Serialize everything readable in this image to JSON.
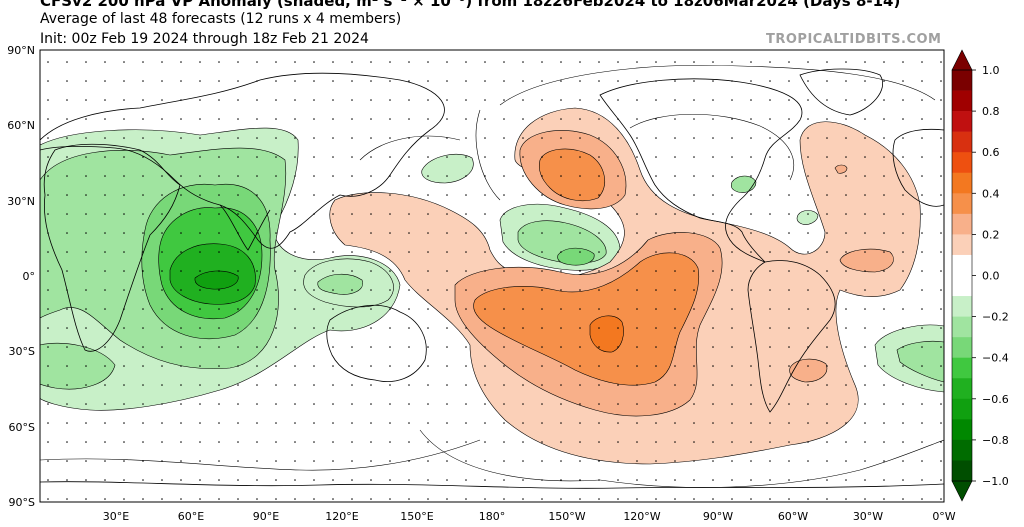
{
  "header": {
    "title": "CFSv2 200 hPa VP Anomaly (shaded, m² s⁻¹ × 10⁻⁶) from 18z26Feb2024 to 18z06Mar2024 (Days 8-14)",
    "subtitle1": "Average of last 48 forecasts (12 runs x 4 members)",
    "subtitle2": "Init: 00z Feb 19 2024 through 18z Feb 21 2024",
    "credit": "TROPICALTIDBITS.COM"
  },
  "map": {
    "projection": "equirectangular",
    "lat_labels": [
      "90°N",
      "60°N",
      "30°N",
      "0°",
      "30°S",
      "60°S",
      "90°S"
    ],
    "lon_labels": [
      "30°E",
      "60°E",
      "90°E",
      "120°E",
      "150°E",
      "180°",
      "150°W",
      "120°W",
      "90°W",
      "60°W",
      "30°W",
      "0°W"
    ]
  },
  "colorbar": {
    "ticks": [
      "1.0",
      "0.8",
      "0.6",
      "0.4",
      "0.2",
      "0.0",
      "−0.2",
      "−0.4",
      "−0.6",
      "−0.8",
      "−1.0"
    ],
    "colors": [
      "#7a0000",
      "#a00000",
      "#c01010",
      "#d83010",
      "#ee5010",
      "#f37820",
      "#f6904a",
      "#f8b08a",
      "#fbd0b8",
      "#ffffff",
      "#ffffff",
      "#c8f0c8",
      "#a0e4a0",
      "#78d878",
      "#40c840",
      "#20b020",
      "#10a010",
      "#008800",
      "#006c00",
      "#004e00"
    ]
  }
}
